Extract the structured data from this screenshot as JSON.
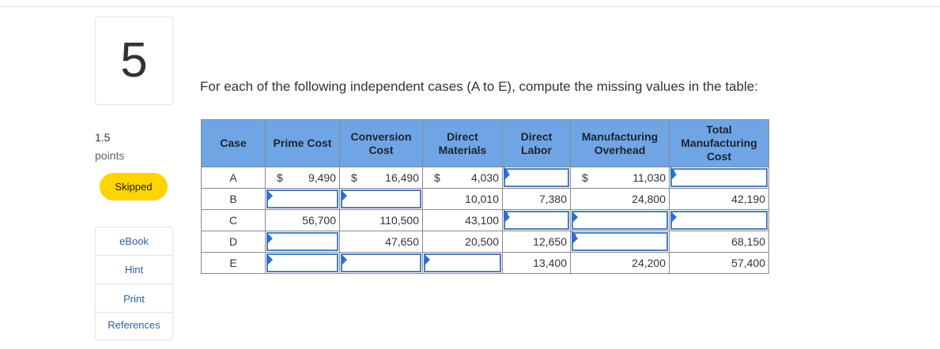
{
  "question": {
    "number": "5",
    "points_value": "1.5",
    "points_label": "points",
    "status": "Skipped",
    "prompt": "For each of the following independent cases (A to E), compute the missing values in the table:"
  },
  "tools": [
    "eBook",
    "Hint",
    "Print",
    "References"
  ],
  "table": {
    "headers": [
      "Case",
      "Prime Cost",
      "Conversion Cost",
      "Direct Materials",
      "Direct Labor",
      "Manufacturing Overhead",
      "Total Manufacturing Cost"
    ],
    "currency_symbol": "$",
    "rows": [
      {
        "case": "A",
        "prime_cost": "9,490",
        "conversion_cost": "16,490",
        "direct_materials": "4,030",
        "direct_labor": "",
        "manufacturing_overhead": "11,030",
        "total_manufacturing_cost": ""
      },
      {
        "case": "B",
        "prime_cost": "",
        "conversion_cost": "",
        "direct_materials": "10,010",
        "direct_labor": "7,380",
        "manufacturing_overhead": "24,800",
        "total_manufacturing_cost": "42,190"
      },
      {
        "case": "C",
        "prime_cost": "56,700",
        "conversion_cost": "110,500",
        "direct_materials": "43,100",
        "direct_labor": "",
        "manufacturing_overhead": "",
        "total_manufacturing_cost": ""
      },
      {
        "case": "D",
        "prime_cost": "",
        "conversion_cost": "47,650",
        "direct_materials": "20,500",
        "direct_labor": "12,650",
        "manufacturing_overhead": "",
        "total_manufacturing_cost": "68,150"
      },
      {
        "case": "E",
        "prime_cost": "",
        "conversion_cost": "",
        "direct_materials": "",
        "direct_labor": "13,400",
        "manufacturing_overhead": "24,200",
        "total_manufacturing_cost": "57,400"
      }
    ]
  },
  "colors": {
    "header_bg": "#6fa5e5",
    "input_border": "#4c7fc0",
    "status_badge": "#ffd400",
    "tool_link": "#2f5f9e"
  }
}
